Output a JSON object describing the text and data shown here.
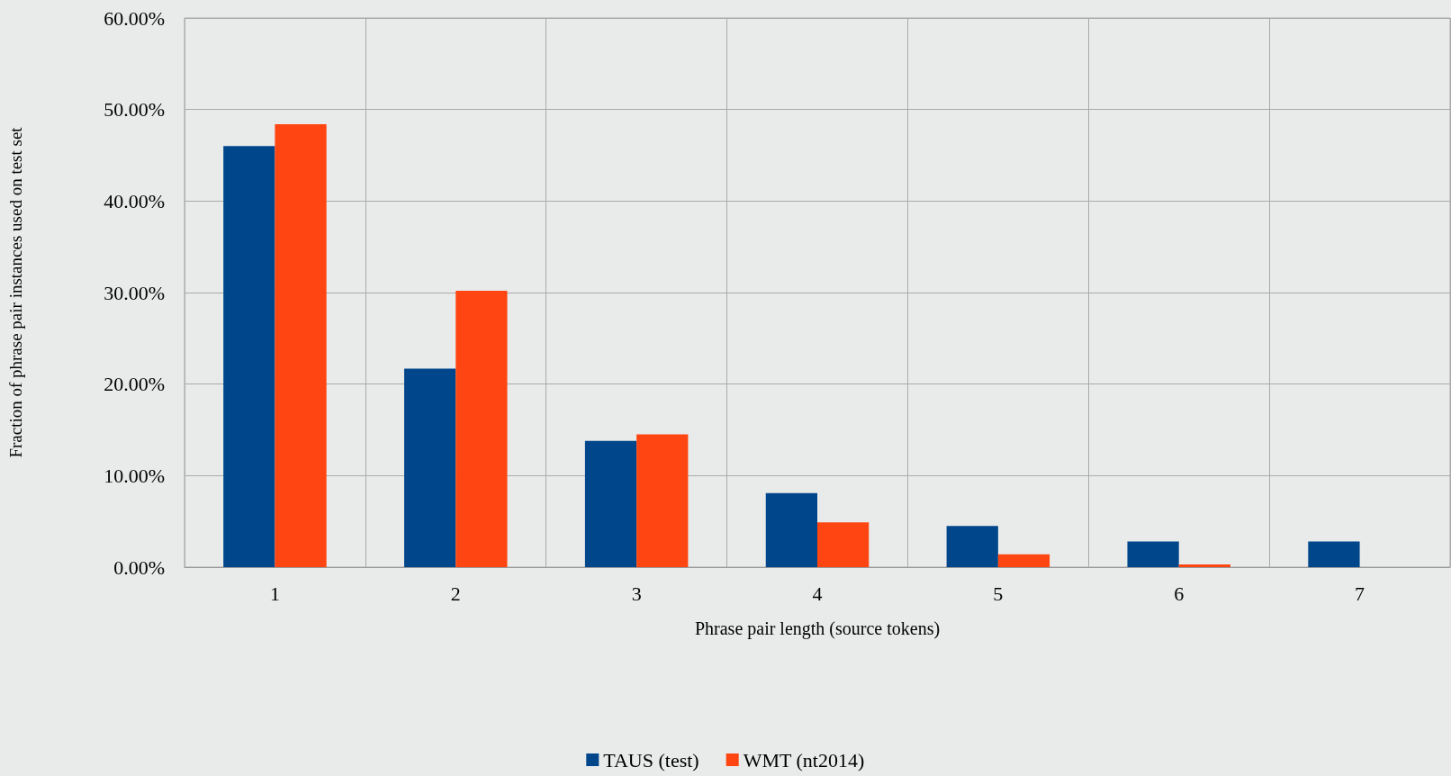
{
  "chart_data": {
    "type": "bar",
    "xlabel": "Phrase pair length (source tokens)",
    "ylabel": "Fraction of phrase pair instances used on test set",
    "categories": [
      "1",
      "2",
      "3",
      "4",
      "5",
      "6",
      "7"
    ],
    "series": [
      {
        "name": "TAUS (test)",
        "color": "#00468b",
        "values": [
          46.0,
          21.7,
          13.8,
          8.1,
          4.5,
          2.8,
          2.8
        ]
      },
      {
        "name": "WMT (nt2014)",
        "color": "#ff4511",
        "values": [
          48.4,
          30.2,
          14.5,
          4.9,
          1.4,
          0.3,
          0
        ]
      }
    ],
    "ylim": [
      0,
      60
    ],
    "yticks": [
      {
        "value": 0,
        "label": "0.00%"
      },
      {
        "value": 10,
        "label": "10.00%"
      },
      {
        "value": 20,
        "label": "20.00%"
      },
      {
        "value": 30,
        "label": "30.00%"
      },
      {
        "value": 40,
        "label": "40.00%"
      },
      {
        "value": 50,
        "label": "50.00%"
      },
      {
        "value": 60,
        "label": "60.00%"
      }
    ],
    "grid": true,
    "legend": "bottom"
  }
}
